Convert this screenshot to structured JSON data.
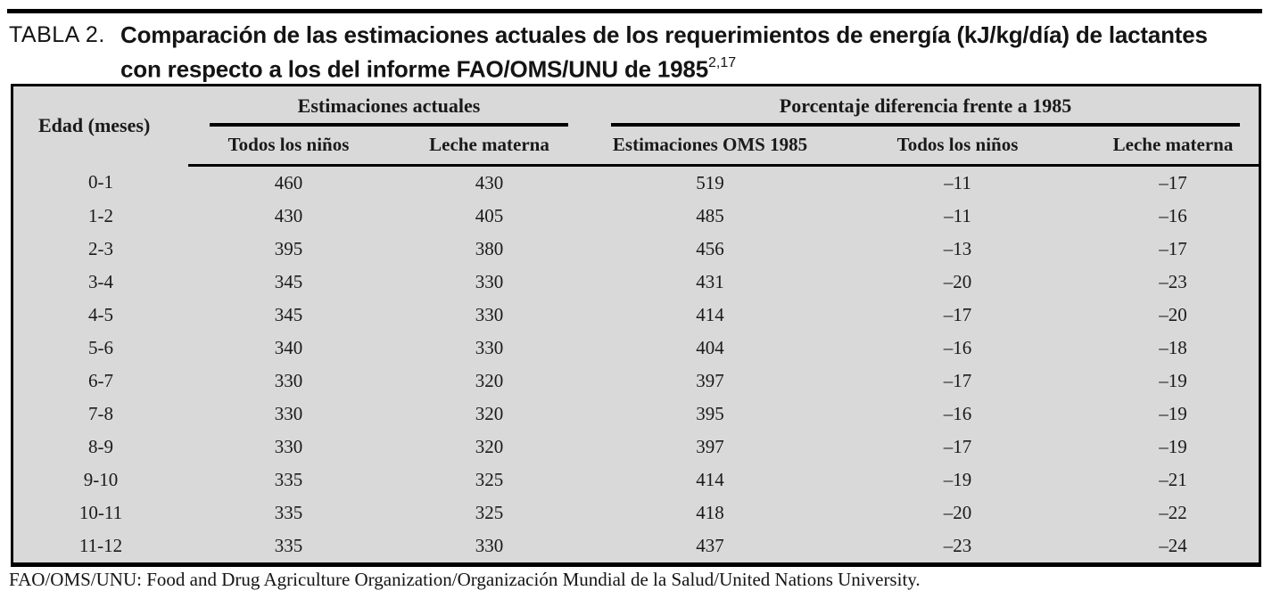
{
  "title": {
    "label": "TABLA 2.",
    "line1": "Comparación de las estimaciones actuales de los requerimientos de energía (kJ/kg/día) de lactantes",
    "line2": "con respecto a los del informe FAO/OMS/UNU de 1985",
    "superscript": "2,17"
  },
  "table": {
    "col1_header": "Edad (meses)",
    "groups": [
      {
        "label": "Estimaciones actuales"
      },
      {
        "label": "Porcentaje diferencia frente a 1985"
      }
    ],
    "subheaders": [
      "Todos los niños",
      "Leche materna",
      "Estimaciones OMS 1985",
      "Todos los niños",
      "Leche materna"
    ],
    "rows": [
      [
        "0-1",
        "460",
        "430",
        "519",
        "–11",
        "–17"
      ],
      [
        "1-2",
        "430",
        "405",
        "485",
        "–11",
        "–16"
      ],
      [
        "2-3",
        "395",
        "380",
        "456",
        "–13",
        "–17"
      ],
      [
        "3-4",
        "345",
        "330",
        "431",
        "–20",
        "–23"
      ],
      [
        "4-5",
        "345",
        "330",
        "414",
        "–17",
        "–20"
      ],
      [
        "5-6",
        "340",
        "330",
        "404",
        "–16",
        "–18"
      ],
      [
        "6-7",
        "330",
        "320",
        "397",
        "–17",
        "–19"
      ],
      [
        "7-8",
        "330",
        "320",
        "395",
        "–16",
        "–19"
      ],
      [
        "8-9",
        "330",
        "320",
        "397",
        "–17",
        "–19"
      ],
      [
        "9-10",
        "335",
        "325",
        "414",
        "–19",
        "–21"
      ],
      [
        "10-11",
        "335",
        "325",
        "418",
        "–20",
        "–22"
      ],
      [
        "11-12",
        "335",
        "330",
        "437",
        "–23",
        "–24"
      ]
    ]
  },
  "footnote": "FAO/OMS/UNU: Food and Drug Agriculture Organization/Organización Mundial de la Salud/United Nations University.",
  "colors": {
    "table_background": "#d9d9d9",
    "rule": "#000000",
    "text": "#1a1a1a"
  }
}
